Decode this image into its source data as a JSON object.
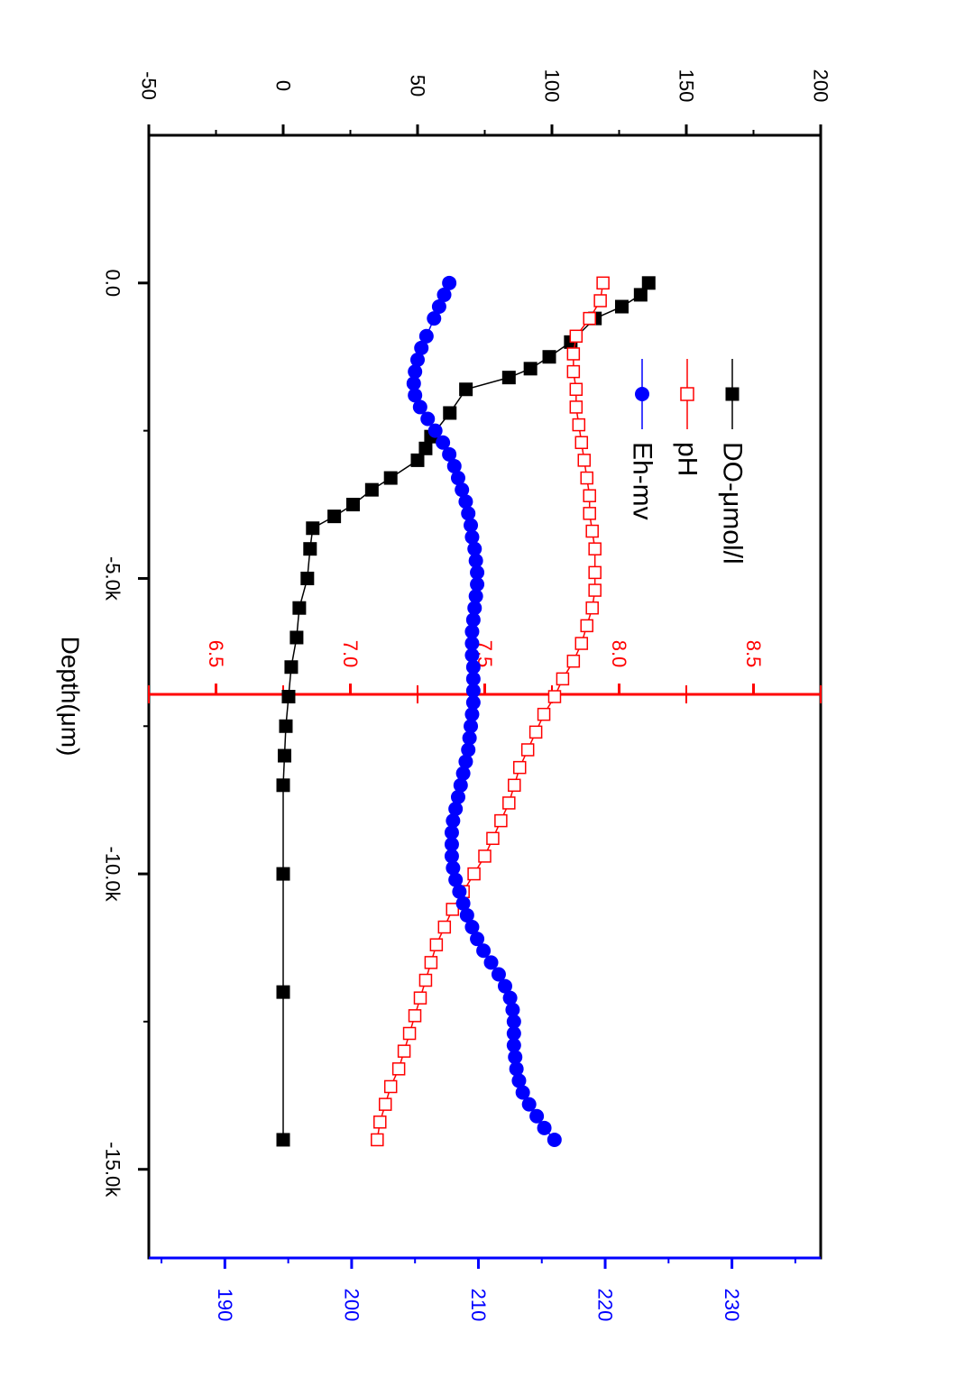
{
  "chart_data": {
    "type": "scatter",
    "rotation": "figure rotated 90 degrees clockwise",
    "xlabel": "Depth(μm)",
    "x_ticks": [
      {
        "value": 0,
        "label": "0.0"
      },
      {
        "value": -5000,
        "label": "-5.0k"
      },
      {
        "value": -10000,
        "label": "-10.0k"
      },
      {
        "value": -15000,
        "label": "-15.0k"
      }
    ],
    "xlim": [
      2500,
      -16500
    ],
    "left_axis": {
      "ticks": [
        {
          "value": -50,
          "label": "-50"
        },
        {
          "value": 0,
          "label": "0"
        },
        {
          "value": 50,
          "label": "50"
        },
        {
          "value": 100,
          "label": "100"
        },
        {
          "value": 150,
          "label": "150"
        },
        {
          "value": 200,
          "label": "200"
        }
      ],
      "lim": [
        -50,
        200
      ],
      "color": "#000000"
    },
    "ph_axis": {
      "ticks": [
        {
          "value": 6.5,
          "label": "6.5"
        },
        {
          "value": 7.0,
          "label": "7.0"
        },
        {
          "value": 7.5,
          "label": "7.5"
        },
        {
          "value": 8.0,
          "label": "8.0"
        },
        {
          "value": 8.5,
          "label": "8.5"
        }
      ],
      "lim": [
        6.25,
        8.75
      ],
      "color": "#ff0000"
    },
    "eh_axis": {
      "ticks": [
        {
          "value": 190,
          "label": "190"
        },
        {
          "value": 200,
          "label": "200"
        },
        {
          "value": 210,
          "label": "210"
        },
        {
          "value": 220,
          "label": "220"
        },
        {
          "value": 230,
          "label": "230"
        }
      ],
      "lim": [
        184,
        237
      ],
      "color": "#0000ff"
    },
    "series": [
      {
        "name": "DO-μmol/l",
        "axis": "left",
        "color": "#000000",
        "marker": "filled-square",
        "points": [
          [
            0,
            136
          ],
          [
            -200,
            133
          ],
          [
            -400,
            126
          ],
          [
            -600,
            116
          ],
          [
            -1000,
            107
          ],
          [
            -1250,
            99
          ],
          [
            -1450,
            92
          ],
          [
            -1600,
            84
          ],
          [
            -1800,
            68
          ],
          [
            -2200,
            62
          ],
          [
            -2600,
            55
          ],
          [
            -2800,
            53
          ],
          [
            -3000,
            50
          ],
          [
            -3300,
            40
          ],
          [
            -3500,
            33
          ],
          [
            -3750,
            26
          ],
          [
            -3950,
            19
          ],
          [
            -4150,
            11
          ],
          [
            -4500,
            10
          ],
          [
            -5000,
            9
          ],
          [
            -5500,
            6
          ],
          [
            -6000,
            5
          ],
          [
            -6500,
            3
          ],
          [
            -7000,
            2
          ],
          [
            -7500,
            1
          ],
          [
            -8000,
            0.5
          ],
          [
            -8500,
            0
          ],
          [
            -10000,
            0
          ],
          [
            -12000,
            0
          ],
          [
            -14500,
            0
          ]
        ]
      },
      {
        "name": "pH",
        "axis": "ph",
        "color": "#ff0000",
        "marker": "open-square",
        "points": [
          [
            0,
            7.94
          ],
          [
            -300,
            7.93
          ],
          [
            -600,
            7.89
          ],
          [
            -900,
            7.84
          ],
          [
            -1200,
            7.83
          ],
          [
            -1500,
            7.83
          ],
          [
            -1800,
            7.84
          ],
          [
            -2100,
            7.84
          ],
          [
            -2400,
            7.85
          ],
          [
            -2700,
            7.86
          ],
          [
            -3000,
            7.87
          ],
          [
            -3300,
            7.88
          ],
          [
            -3600,
            7.89
          ],
          [
            -3900,
            7.89
          ],
          [
            -4200,
            7.9
          ],
          [
            -4500,
            7.91
          ],
          [
            -4900,
            7.91
          ],
          [
            -5200,
            7.91
          ],
          [
            -5500,
            7.9
          ],
          [
            -5800,
            7.88
          ],
          [
            -6100,
            7.86
          ],
          [
            -6400,
            7.83
          ],
          [
            -6700,
            7.79
          ],
          [
            -7000,
            7.76
          ],
          [
            -7300,
            7.72
          ],
          [
            -7600,
            7.69
          ],
          [
            -7900,
            7.66
          ],
          [
            -8200,
            7.63
          ],
          [
            -8500,
            7.61
          ],
          [
            -8800,
            7.59
          ],
          [
            -9100,
            7.56
          ],
          [
            -9400,
            7.53
          ],
          [
            -9700,
            7.5
          ],
          [
            -10000,
            7.46
          ],
          [
            -10300,
            7.42
          ],
          [
            -10600,
            7.38
          ],
          [
            -10900,
            7.35
          ],
          [
            -11200,
            7.32
          ],
          [
            -11500,
            7.3
          ],
          [
            -11800,
            7.28
          ],
          [
            -12100,
            7.26
          ],
          [
            -12400,
            7.24
          ],
          [
            -12700,
            7.22
          ],
          [
            -13000,
            7.2
          ],
          [
            -13300,
            7.18
          ],
          [
            -13600,
            7.15
          ],
          [
            -13900,
            7.13
          ],
          [
            -14200,
            7.11
          ],
          [
            -14500,
            7.1
          ]
        ]
      },
      {
        "name": "Eh-mv",
        "axis": "eh",
        "color": "#0000ff",
        "marker": "filled-circle",
        "points": [
          [
            0,
            207.7
          ],
          [
            -200,
            207.3
          ],
          [
            -400,
            206.9
          ],
          [
            -600,
            206.5
          ],
          [
            -900,
            205.9
          ],
          [
            -1100,
            205.5
          ],
          [
            -1300,
            205.2
          ],
          [
            -1500,
            205
          ],
          [
            -1700,
            204.9
          ],
          [
            -1900,
            205
          ],
          [
            -2100,
            205.4
          ],
          [
            -2300,
            206
          ],
          [
            -2500,
            206.6
          ],
          [
            -2700,
            207.2
          ],
          [
            -2900,
            207.7
          ],
          [
            -3100,
            208.1
          ],
          [
            -3300,
            208.4
          ],
          [
            -3500,
            208.7
          ],
          [
            -3700,
            209
          ],
          [
            -3900,
            209.2
          ],
          [
            -4100,
            209.4
          ],
          [
            -4300,
            209.5
          ],
          [
            -4500,
            209.7
          ],
          [
            -4700,
            209.8
          ],
          [
            -4900,
            209.9
          ],
          [
            -5100,
            209.9
          ],
          [
            -5300,
            209.8
          ],
          [
            -5500,
            209.7
          ],
          [
            -5700,
            209.6
          ],
          [
            -5900,
            209.5
          ],
          [
            -6100,
            209.5
          ],
          [
            -6300,
            209.5
          ],
          [
            -6500,
            209.6
          ],
          [
            -6700,
            209.6
          ],
          [
            -6900,
            209.6
          ],
          [
            -7100,
            209.6
          ],
          [
            -7300,
            209.5
          ],
          [
            -7500,
            209.4
          ],
          [
            -7700,
            209.3
          ],
          [
            -7900,
            209.2
          ],
          [
            -8100,
            209
          ],
          [
            -8300,
            208.8
          ],
          [
            -8500,
            208.6
          ],
          [
            -8700,
            208.4
          ],
          [
            -8900,
            208.2
          ],
          [
            -9100,
            208
          ],
          [
            -9300,
            207.9
          ],
          [
            -9500,
            207.9
          ],
          [
            -9700,
            207.9
          ],
          [
            -9900,
            208
          ],
          [
            -10100,
            208.2
          ],
          [
            -10300,
            208.5
          ],
          [
            -10500,
            208.8
          ],
          [
            -10700,
            209.1
          ],
          [
            -10900,
            209.5
          ],
          [
            -11100,
            209.9
          ],
          [
            -11300,
            210.4
          ],
          [
            -11500,
            211
          ],
          [
            -11700,
            211.6
          ],
          [
            -11900,
            212.1
          ],
          [
            -12100,
            212.5
          ],
          [
            -12300,
            212.7
          ],
          [
            -12500,
            212.8
          ],
          [
            -12700,
            212.8
          ],
          [
            -12900,
            212.8
          ],
          [
            -13100,
            212.9
          ],
          [
            -13300,
            213
          ],
          [
            -13500,
            213.2
          ],
          [
            -13700,
            213.5
          ],
          [
            -13900,
            214
          ],
          [
            -14100,
            214.6
          ],
          [
            -14300,
            215.2
          ],
          [
            -14500,
            216
          ]
        ]
      }
    ]
  }
}
